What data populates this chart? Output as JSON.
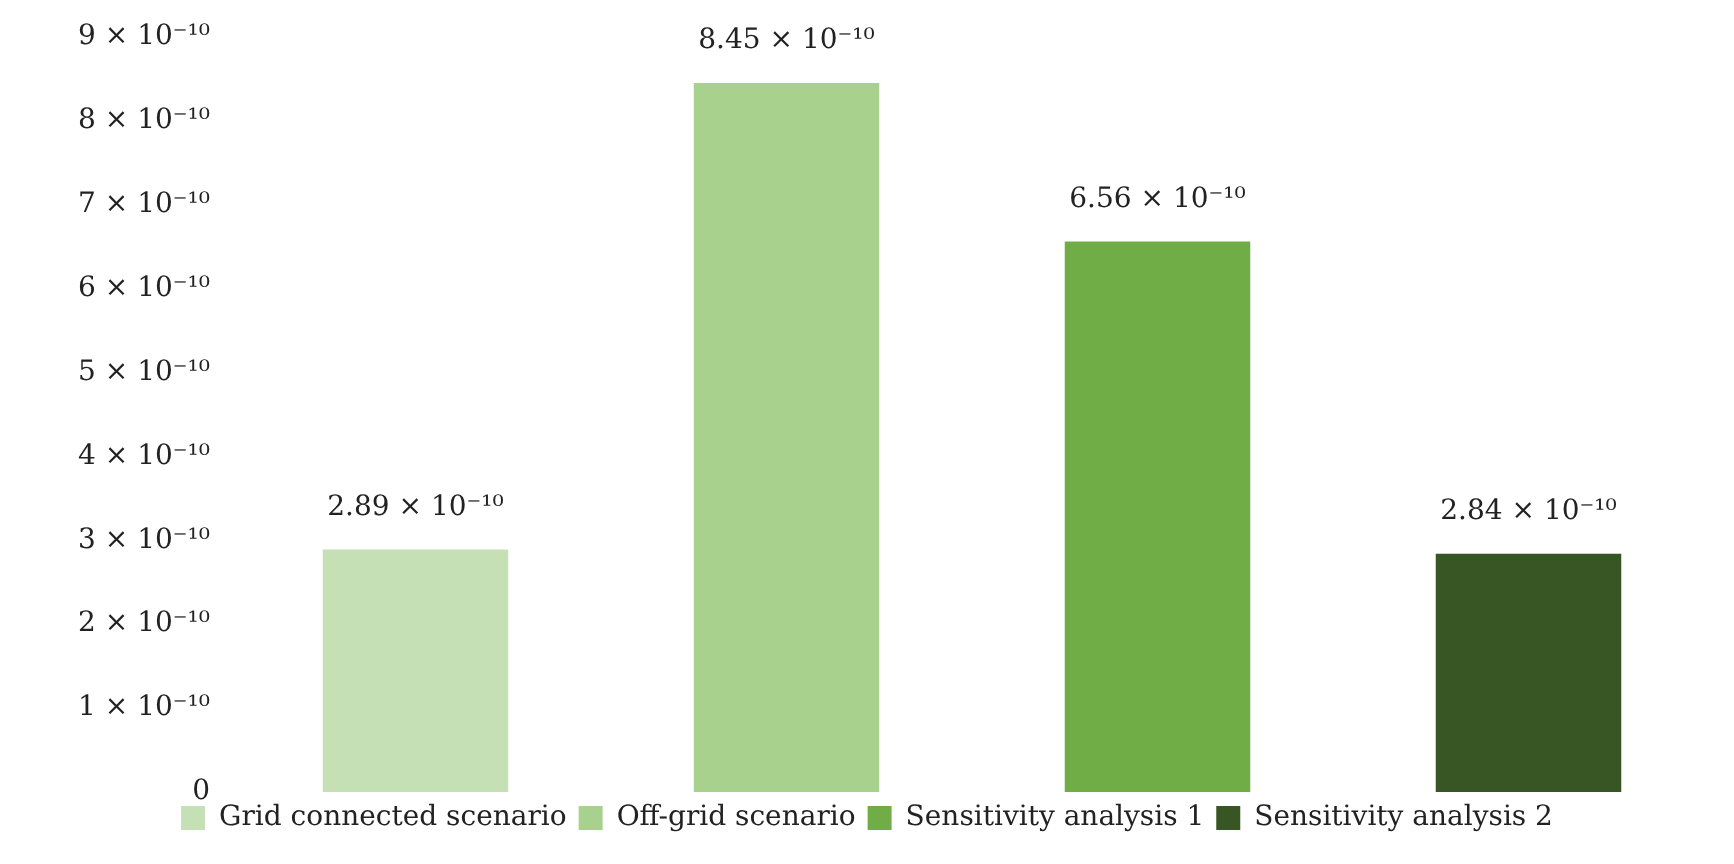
{
  "chart_data": {
    "type": "bar",
    "categories": [
      null,
      null,
      null,
      null
    ],
    "stacked": true,
    "series": [
      {
        "name": "Grid connected scenario",
        "color": "#c5e0b4",
        "values": [
          2.89e-10,
          null,
          null,
          null
        ],
        "value_labels": [
          "2.89 × 10⁻¹⁰",
          null,
          null,
          null
        ]
      },
      {
        "name": "Off-grid scenario",
        "color": "#a9d18e",
        "values": [
          null,
          8.45e-10,
          null,
          null
        ],
        "value_labels": [
          null,
          "8.45 × 10⁻¹⁰",
          null,
          null
        ]
      },
      {
        "name": "Sensitivity analysis 1",
        "color": "#70ad47",
        "values": [
          null,
          null,
          6.56e-10,
          null
        ],
        "value_labels": [
          null,
          null,
          "6.56 × 10⁻¹⁰",
          null
        ]
      },
      {
        "name": "Sensitivity analysis 2",
        "color": "#375623",
        "values": [
          null,
          null,
          null,
          2.84e-10
        ],
        "value_labels": [
          null,
          null,
          null,
          "2.84 × 10⁻¹⁰"
        ]
      }
    ],
    "ylim": [
      0,
      9e-10
    ],
    "yticks": [
      0,
      {
        "value": 1e-10,
        "label": "1 × 10⁻¹⁰"
      },
      {
        "value": 2e-10,
        "label": "2 × 10⁻¹⁰"
      },
      {
        "value": 3e-10,
        "label": "3 × 10⁻¹⁰"
      },
      {
        "value": 4e-10,
        "label": "4 × 10⁻¹⁰"
      },
      {
        "value": 5e-10,
        "label": "5 × 10⁻¹⁰"
      },
      {
        "value": 6e-10,
        "label": "6 × 10⁻¹⁰"
      },
      {
        "value": 7e-10,
        "label": "7 × 10⁻¹⁰"
      },
      {
        "value": 8e-10,
        "label": "8 × 10⁻¹⁰"
      },
      {
        "value": 9e-10,
        "label": "9 × 10⁻¹⁰"
      }
    ],
    "tick_labels": "y",
    "grid": false,
    "legend": "bottom"
  }
}
